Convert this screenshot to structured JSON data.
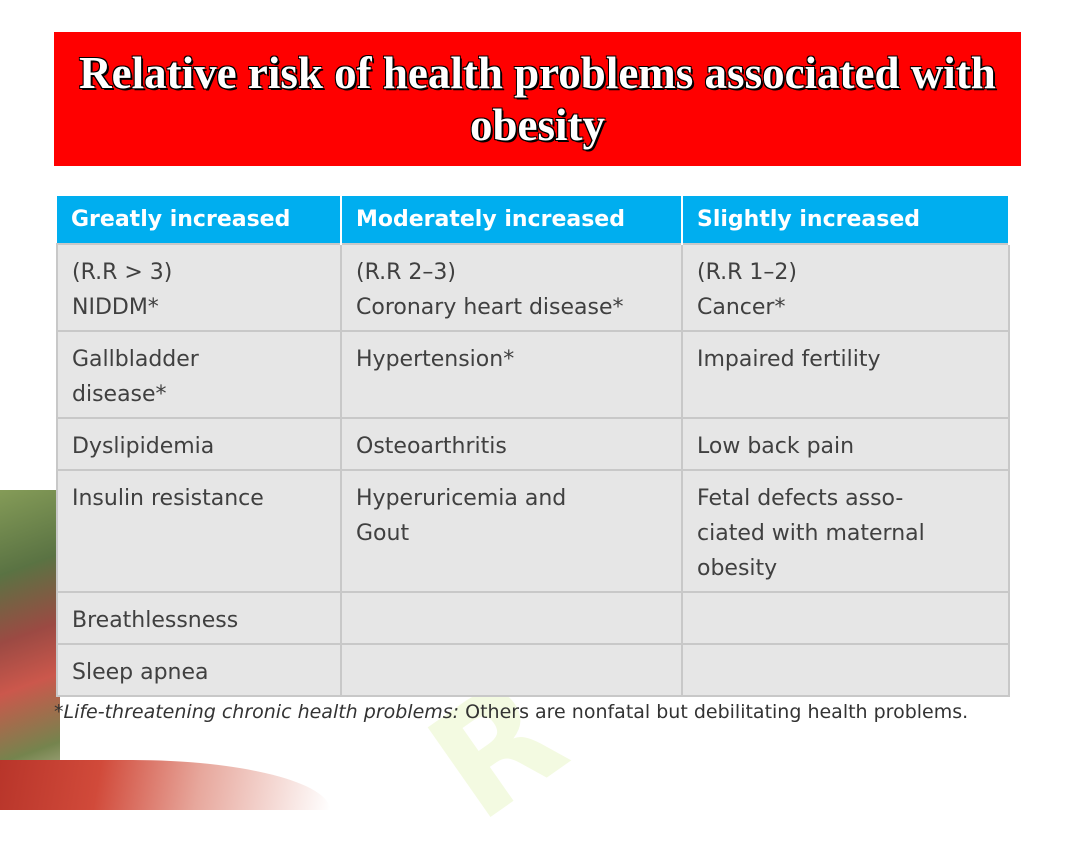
{
  "title": "Relative risk of health problems associated with obesity",
  "table": {
    "headers": [
      "Greatly increased",
      "Moderately increased",
      "Slightly increased"
    ],
    "rows": [
      [
        [
          "(R.R > 3)",
          "NIDDM*"
        ],
        [
          "(R.R 2–3)",
          "Coronary heart disease*"
        ],
        [
          "(R.R 1–2)",
          "Cancer*"
        ]
      ],
      [
        [
          "Gallbladder",
          "disease*"
        ],
        [
          "Hypertension*"
        ],
        [
          "Impaired fertility"
        ]
      ],
      [
        [
          "Dyslipidemia"
        ],
        [
          "Osteoarthritis"
        ],
        [
          "Low back pain"
        ]
      ],
      [
        [
          "Insulin resistance"
        ],
        [
          "Hyperuricemia and",
          "Gout"
        ],
        [
          "Fetal defects asso-",
          "ciated with maternal",
          "obesity"
        ]
      ],
      [
        [
          "Breathlessness"
        ],
        [],
        []
      ],
      [
        [
          "Sleep apnea"
        ],
        [],
        []
      ]
    ]
  },
  "footnote": {
    "italic": "*Life-threatening chronic health problems:",
    "rest": " Others are nonfatal but debilitating health problems."
  },
  "colors": {
    "title_bg": "#ff0000",
    "header_bg": "#00aeef",
    "cell_bg": "#e6e6e6"
  }
}
